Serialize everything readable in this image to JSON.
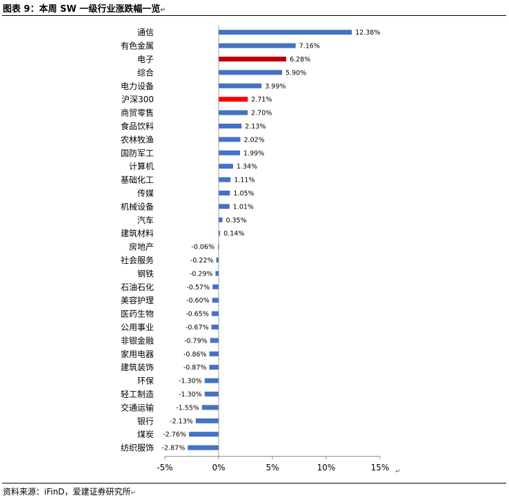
{
  "header": {
    "title": "图表 9：本周 SW 一级行业涨跌幅一览",
    "return_mark": "↵"
  },
  "footer": {
    "source": "资料来源：iFinD，爱建证券研究所"
  },
  "chart_data": {
    "type": "bar",
    "orientation": "horizontal",
    "title": "",
    "xlabel": "",
    "ylabel": "",
    "xlim": [
      -5,
      15
    ],
    "xticks": [
      -5,
      0,
      5,
      10,
      15
    ],
    "xtick_labels": [
      "-5%",
      "0%",
      "5%",
      "10%",
      "15%"
    ],
    "value_suffix": "%",
    "grid": false,
    "legend": "none",
    "colors": {
      "default": "#4472C4",
      "highlight_dark": "#C00000",
      "highlight_bright": "#FF0000"
    },
    "categories": [
      "通信",
      "有色金属",
      "电子",
      "综合",
      "电力设备",
      "沪深300",
      "商贸零售",
      "食品饮料",
      "农林牧渔",
      "国防军工",
      "计算机",
      "基础化工",
      "传媒",
      "机械设备",
      "汽车",
      "建筑材料",
      "房地产",
      "社会服务",
      "钢铁",
      "石油石化",
      "美容护理",
      "医药生物",
      "公用事业",
      "非银金融",
      "家用电器",
      "建筑装饰",
      "环保",
      "轻工制造",
      "交通运输",
      "银行",
      "煤炭",
      "纺织服饰"
    ],
    "values": [
      12.38,
      7.16,
      6.28,
      5.9,
      3.99,
      2.71,
      2.7,
      2.13,
      2.02,
      1.99,
      1.34,
      1.11,
      1.05,
      1.01,
      0.35,
      0.14,
      -0.06,
      -0.22,
      -0.29,
      -0.57,
      -0.6,
      -0.65,
      -0.67,
      -0.79,
      -0.86,
      -0.87,
      -1.3,
      -1.3,
      -1.55,
      -2.13,
      -2.76,
      -2.87
    ],
    "value_labels": [
      "12.38%",
      "7.16%",
      "6.28%",
      "5.90%",
      "3.99%",
      "2.71%",
      "2.70%",
      "2.13%",
      "2.02%",
      "1.99%",
      "1.34%",
      "1.11%",
      "1.05%",
      "1.01%",
      "0.35%",
      "0.14%",
      "-0.06%",
      "-0.22%",
      "-0.29%",
      "-0.57%",
      "-0.60%",
      "-0.65%",
      "-0.67%",
      "-0.79%",
      "-0.86%",
      "-0.87%",
      "-1.30%",
      "-1.30%",
      "-1.55%",
      "-2.13%",
      "-2.76%",
      "-2.87%"
    ],
    "highlight": {
      "电子": "highlight_dark",
      "沪深300": "highlight_bright"
    }
  }
}
